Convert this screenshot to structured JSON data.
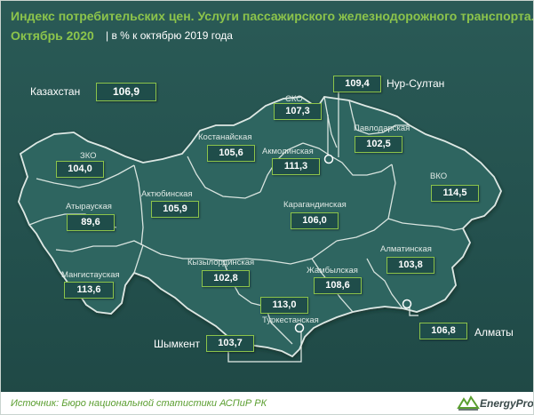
{
  "title": {
    "line1": "Индекс потребительских цен. Услуги пассажирского железнодорожного транспорта.",
    "line2": "Октябрь 2020",
    "subtitle": "|  в % к октябрю 2019 года"
  },
  "colors": {
    "accent": "#8cc44b",
    "background": "#24524f",
    "box_fill": "#1f4d4a",
    "border_lines": "#d8e4df"
  },
  "country": {
    "label": "Казахстан",
    "value": "106,9"
  },
  "regions": [
    {
      "id": "zko",
      "label": "ЗКО",
      "value": "104,0"
    },
    {
      "id": "atyrau",
      "label": "Атырауская",
      "value": "89,6"
    },
    {
      "id": "mangystau",
      "label": "Мангистауская",
      "value": "113,6"
    },
    {
      "id": "aktobe",
      "label": "Актюбинская",
      "value": "105,9"
    },
    {
      "id": "kostanay",
      "label": "Костанайская",
      "value": "105,6"
    },
    {
      "id": "sko",
      "label": "СКО",
      "value": "107,3"
    },
    {
      "id": "akmola",
      "label": "Акмолинская",
      "value": "111,3"
    },
    {
      "id": "pavlodar",
      "label": "Павлодарская",
      "value": "102,5"
    },
    {
      "id": "vko",
      "label": "ВКО",
      "value": "114,5"
    },
    {
      "id": "karaganda",
      "label": "Карагандинская",
      "value": "106,0"
    },
    {
      "id": "kyzylorda",
      "label": "Кызылординская",
      "value": "102,8"
    },
    {
      "id": "zhambyl",
      "label": "Жамбылская",
      "value": "108,6"
    },
    {
      "id": "almaty_region",
      "label": "Алматинская",
      "value": "103,8"
    },
    {
      "id": "turkestan",
      "label": "Туркестанская",
      "value": "113,0"
    }
  ],
  "cities": [
    {
      "id": "nur_sultan",
      "label": "Нур-Султан",
      "value": "109,4"
    },
    {
      "id": "almaty",
      "label": "Алматы",
      "value": "106,8"
    },
    {
      "id": "shymkent",
      "label": "Шымкент",
      "value": "103,7"
    }
  ],
  "footer": {
    "source": "Источник: Бюро национальной  статистики АСПиР РК",
    "logo_text": "EnergyProm",
    "logo_icon": "energyprom-logo-icon"
  }
}
